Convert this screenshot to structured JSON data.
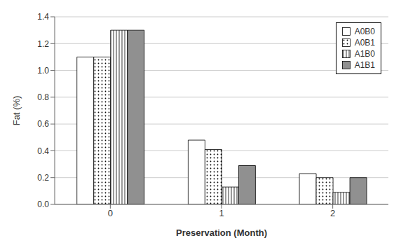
{
  "chart_data": {
    "type": "bar",
    "xlabel": "Preservation (Month)",
    "ylabel": "Fat (%)",
    "categories": [
      0,
      1,
      2
    ],
    "series": [
      {
        "name": "A0B0",
        "color": "white",
        "values": [
          1.1,
          0.48,
          0.23
        ]
      },
      {
        "name": "A0B1",
        "color": "white",
        "values": [
          1.1,
          0.41,
          0.2
        ]
      },
      {
        "name": "A1B0",
        "color": "white",
        "values": [
          1.3,
          0.13,
          0.09
        ]
      },
      {
        "name": "A1B1",
        "color": "#909090",
        "values": [
          1.3,
          0.29,
          0.2
        ]
      }
    ],
    "ylim": [
      0,
      1.4
    ],
    "yticks": [
      {
        "value": 0,
        "label": "0.0"
      },
      0.2,
      0.4,
      0.6,
      0.8,
      {
        "value": 1,
        "label": "1.0"
      },
      1.2,
      1.4
    ],
    "grid": true,
    "legend": "upper right"
  }
}
